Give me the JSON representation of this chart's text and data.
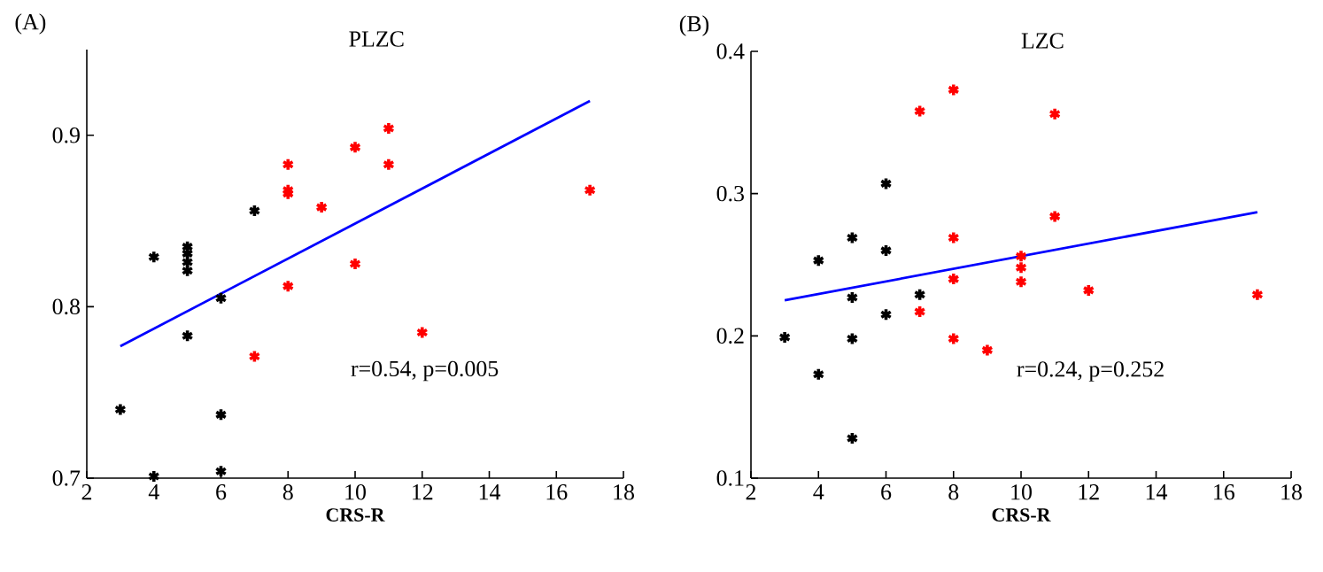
{
  "chart_data": [
    {
      "type": "scatter",
      "title": "PLZC",
      "xlabel": "CRS-R",
      "xlim": [
        2,
        18
      ],
      "ylim": [
        0.7,
        0.95
      ],
      "xticks": [
        2,
        4,
        6,
        8,
        10,
        12,
        14,
        16,
        18
      ],
      "yticks": [
        0.7,
        0.8,
        0.9
      ],
      "marker": "cross",
      "annotations": [
        "(A)",
        "r=0.54, p=0.005"
      ],
      "series": [
        {
          "color": "#000000",
          "x": [
            3,
            4,
            4,
            5,
            5,
            5,
            5,
            5,
            6,
            6,
            6,
            7
          ],
          "values": [
            0.74,
            0.829,
            0.701,
            0.835,
            0.831,
            0.826,
            0.821,
            0.783,
            0.805,
            0.737,
            0.704,
            0.856
          ]
        },
        {
          "color": "#ff0000",
          "x": [
            7,
            8,
            8,
            8,
            8,
            9,
            10,
            10,
            11,
            11,
            12,
            17
          ],
          "values": [
            0.771,
            0.883,
            0.868,
            0.866,
            0.812,
            0.858,
            0.893,
            0.825,
            0.904,
            0.883,
            0.785,
            0.868
          ]
        },
        {
          "type": "line",
          "marker": "none",
          "color": "#0000ff",
          "x": [
            3,
            17
          ],
          "values": [
            0.777,
            0.92
          ]
        }
      ]
    },
    {
      "type": "scatter",
      "title": "LZC",
      "xlabel": "CRS-R",
      "xlim": [
        2,
        18
      ],
      "ylim": [
        0.1,
        0.4
      ],
      "xticks": [
        2,
        4,
        6,
        8,
        10,
        12,
        14,
        16,
        18
      ],
      "yticks": [
        0.1,
        0.2,
        0.3,
        0.4
      ],
      "marker": "cross",
      "annotations": [
        "(B)",
        "r=0.24, p=0.252"
      ],
      "series": [
        {
          "color": "#000000",
          "x": [
            3,
            4,
            4,
            5,
            5,
            5,
            5,
            6,
            6,
            6,
            7
          ],
          "values": [
            0.199,
            0.253,
            0.173,
            0.269,
            0.227,
            0.198,
            0.128,
            0.307,
            0.26,
            0.215,
            0.229
          ]
        },
        {
          "color": "#ff0000",
          "x": [
            7,
            7,
            8,
            8,
            8,
            8,
            9,
            10,
            10,
            10,
            11,
            11,
            12,
            17
          ],
          "values": [
            0.358,
            0.217,
            0.373,
            0.269,
            0.24,
            0.198,
            0.19,
            0.256,
            0.248,
            0.238,
            0.356,
            0.284,
            0.232,
            0.229
          ]
        },
        {
          "type": "line",
          "marker": "none",
          "color": "#0000ff",
          "x": [
            3,
            17
          ],
          "values": [
            0.225,
            0.287
          ]
        }
      ]
    }
  ]
}
